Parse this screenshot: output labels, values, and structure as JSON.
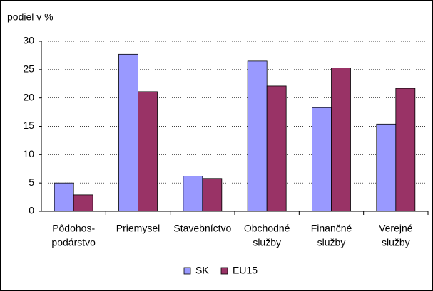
{
  "chart_data": {
    "type": "bar",
    "y_label": "podiel v %",
    "categories": [
      [
        "Pôdohos-",
        "podárstvo"
      ],
      [
        "Priemysel"
      ],
      [
        "Stavebníctvo"
      ],
      [
        "Obchodné",
        "služby"
      ],
      [
        "Finančné",
        "služby"
      ],
      [
        "Verejné",
        "služby"
      ]
    ],
    "series": [
      {
        "name": "SK",
        "color": "#9999ff",
        "values": [
          5.0,
          27.7,
          6.2,
          26.5,
          18.3,
          15.4
        ]
      },
      {
        "name": "EU15",
        "color": "#993366",
        "values": [
          2.9,
          21.1,
          5.8,
          22.1,
          25.3,
          21.7
        ]
      }
    ],
    "ylim": [
      0,
      30
    ],
    "yticks": [
      0,
      5,
      10,
      15,
      20,
      25,
      30
    ],
    "grid": true,
    "legend": "bottom"
  }
}
